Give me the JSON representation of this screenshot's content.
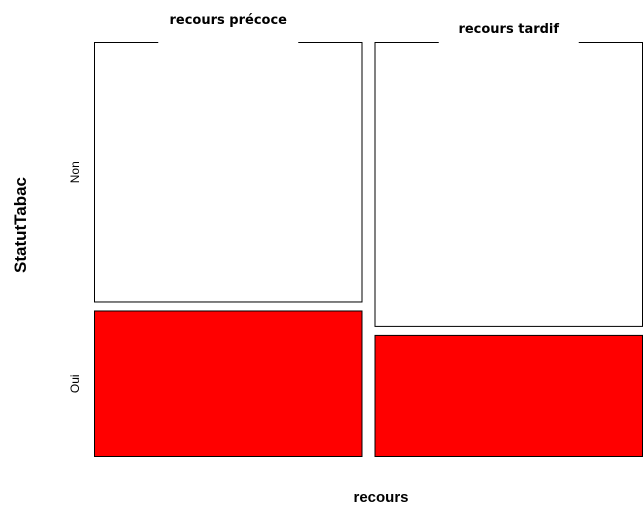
{
  "chart_data": {
    "type": "mosaic",
    "xlabel": "recours",
    "ylabel": "StatutTabac",
    "x_categories": [
      "recours précoce",
      "recours tardif"
    ],
    "y_categories": [
      "Non",
      "Oui"
    ],
    "x_proportions": [
      0.5,
      0.5
    ],
    "conditional_proportions": [
      {
        "x": "recours précoce",
        "Non": 0.64,
        "Oui": 0.36
      },
      {
        "x": "recours tardif",
        "Non": 0.7,
        "Oui": 0.3
      }
    ],
    "colors": {
      "Non": "#ffffff",
      "Oui": "#ff0000"
    },
    "legend": "none"
  }
}
